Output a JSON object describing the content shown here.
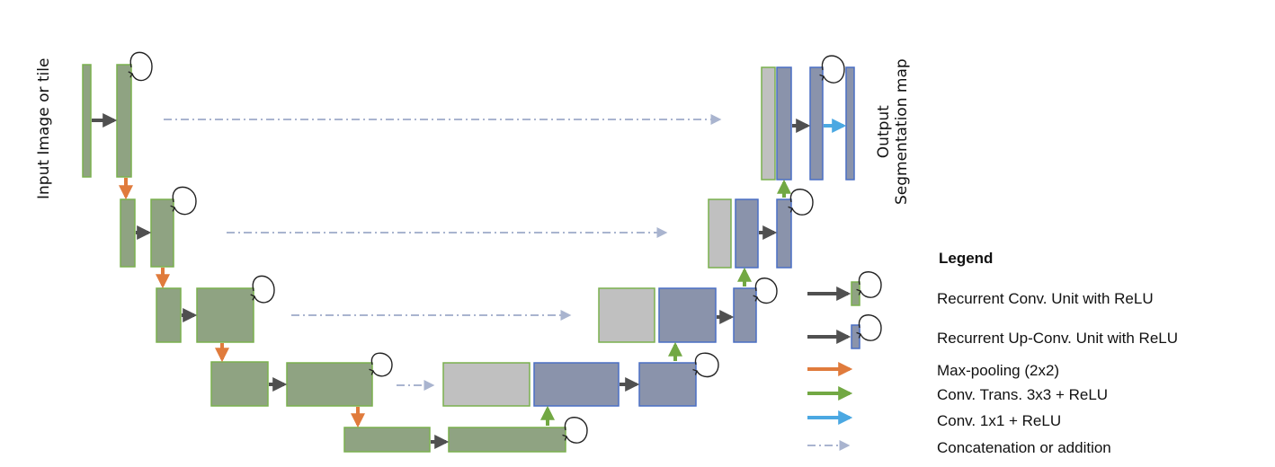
{
  "labels": {
    "input": "Input Image or tile",
    "output_line1": "Output",
    "output_line2": "Segmentation map"
  },
  "legend": {
    "title": "Legend",
    "items": [
      {
        "label": "Recurrent Conv. Unit with ReLU",
        "kind": "recurrent-conv"
      },
      {
        "label": "Recurrent Up-Conv. Unit with ReLU",
        "kind": "recurrent-upconv"
      },
      {
        "label": "Max-pooling (2x2)",
        "kind": "max-pooling"
      },
      {
        "label": "Conv.  Trans. 3x3 + ReLU",
        "kind": "conv-trans"
      },
      {
        "label": "Conv. 1x1 + ReLU",
        "kind": "conv-1x1"
      },
      {
        "label": "Concatenation or addition",
        "kind": "concatenation"
      }
    ]
  },
  "colors": {
    "encoder_fill": "#8fa382",
    "encoder_border": "#7ab04e",
    "decoder_fill": "#8a93ab",
    "decoder_border": "#4a6fc4",
    "copy_fill": "#c0c0c0",
    "conv_arrow": "#505050",
    "pool_arrow": "#e07b3c",
    "up_arrow": "#72a843",
    "out_arrow": "#4ba8e2",
    "concat_arrow": "#a9b4cf"
  }
}
